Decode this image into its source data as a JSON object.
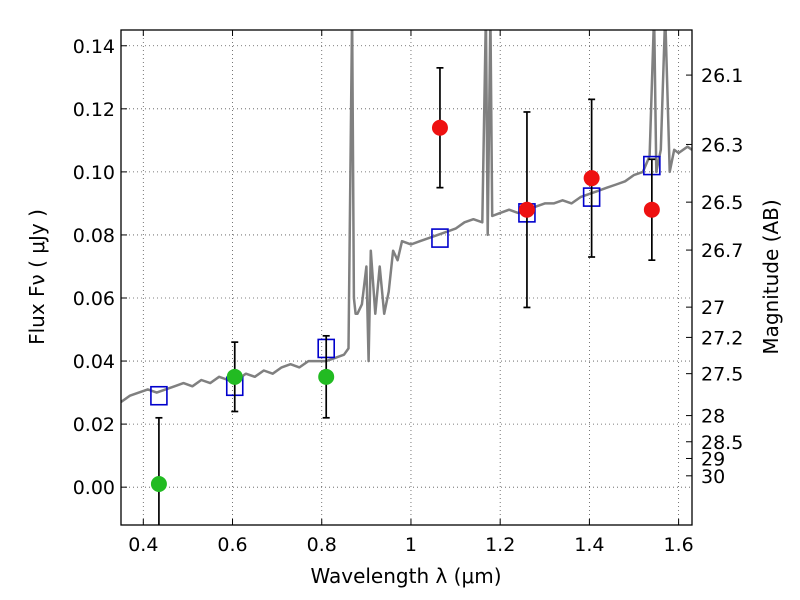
{
  "chart_data": {
    "type": "scatter",
    "title": "",
    "xlabel": "Wavelength  λ (μm)",
    "ylabel": "Flux  Fν  ( μJy )",
    "y2label": "Magnitude (AB)",
    "xlim": [
      0.35,
      1.63
    ],
    "ylim": [
      -0.012,
      0.145
    ],
    "grid": true,
    "x_ticks": [
      0.4,
      0.6,
      0.8,
      1.0,
      1.2,
      1.4,
      1.6
    ],
    "x_tick_labels": [
      "0.4",
      "0.6",
      "0.8",
      "1",
      "1.2",
      "1.4",
      "1.6"
    ],
    "y_ticks": [
      0.0,
      0.02,
      0.04,
      0.06,
      0.08,
      0.1,
      0.12,
      0.14
    ],
    "y_tick_labels": [
      "0.00",
      "0.02",
      "0.04",
      "0.06",
      "0.08",
      "0.10",
      "0.12",
      "0.14"
    ],
    "y2_ticks": [
      {
        "label": "26.1",
        "flux": 0.1307
      },
      {
        "label": "26.3",
        "flux": 0.1087
      },
      {
        "label": "26.5",
        "flux": 0.0904
      },
      {
        "label": "26.7",
        "flux": 0.0752
      },
      {
        "label": "27",
        "flux": 0.0571
      },
      {
        "label": "27.2",
        "flux": 0.0475
      },
      {
        "label": "27.5",
        "flux": 0.036
      },
      {
        "label": "28",
        "flux": 0.0227
      },
      {
        "label": "28.5",
        "flux": 0.0144
      },
      {
        "label": "29",
        "flux": 0.0091
      },
      {
        "label": "30",
        "flux": 0.0036
      }
    ],
    "series": [
      {
        "kind": "spectrum",
        "color": "#808080",
        "x": [
          0.35,
          0.37,
          0.39,
          0.41,
          0.43,
          0.45,
          0.47,
          0.49,
          0.51,
          0.53,
          0.55,
          0.57,
          0.59,
          0.61,
          0.63,
          0.65,
          0.67,
          0.69,
          0.71,
          0.73,
          0.75,
          0.77,
          0.79,
          0.81,
          0.83,
          0.85,
          0.86,
          0.868,
          0.872,
          0.876,
          0.88,
          0.89,
          0.9,
          0.905,
          0.91,
          0.92,
          0.93,
          0.94,
          0.95,
          0.96,
          0.97,
          0.98,
          1.0,
          1.02,
          1.04,
          1.06,
          1.08,
          1.1,
          1.12,
          1.14,
          1.16,
          1.168,
          1.172,
          1.178,
          1.182,
          1.2,
          1.22,
          1.24,
          1.26,
          1.28,
          1.3,
          1.32,
          1.34,
          1.36,
          1.38,
          1.4,
          1.42,
          1.44,
          1.46,
          1.48,
          1.5,
          1.52,
          1.535,
          1.545,
          1.55,
          1.56,
          1.57,
          1.58,
          1.59,
          1.6,
          1.62,
          1.63
        ],
        "y": [
          0.027,
          0.029,
          0.03,
          0.031,
          0.03,
          0.031,
          0.032,
          0.033,
          0.032,
          0.034,
          0.033,
          0.035,
          0.034,
          0.034,
          0.036,
          0.035,
          0.037,
          0.036,
          0.038,
          0.039,
          0.038,
          0.04,
          0.04,
          0.04,
          0.041,
          0.042,
          0.044,
          0.15,
          0.06,
          0.055,
          0.055,
          0.058,
          0.07,
          0.04,
          0.075,
          0.055,
          0.07,
          0.055,
          0.062,
          0.075,
          0.072,
          0.078,
          0.077,
          0.078,
          0.079,
          0.08,
          0.081,
          0.082,
          0.084,
          0.085,
          0.084,
          0.15,
          0.08,
          0.15,
          0.086,
          0.087,
          0.088,
          0.087,
          0.088,
          0.089,
          0.09,
          0.09,
          0.091,
          0.09,
          0.092,
          0.093,
          0.094,
          0.095,
          0.096,
          0.097,
          0.099,
          0.1,
          0.105,
          0.15,
          0.1,
          0.107,
          0.15,
          0.1,
          0.107,
          0.106,
          0.108,
          0.107
        ]
      },
      {
        "kind": "model_points",
        "marker": "open-square",
        "color": "#0000cc",
        "x": [
          0.435,
          0.605,
          0.81,
          1.065,
          1.26,
          1.405,
          1.54
        ],
        "y": [
          0.029,
          0.032,
          0.044,
          0.079,
          0.087,
          0.092,
          0.102
        ]
      },
      {
        "kind": "observed_points",
        "marker": "filled-circle",
        "points": [
          {
            "x": 0.435,
            "y": 0.001,
            "err": 0.021,
            "color": "#22bb22"
          },
          {
            "x": 0.605,
            "y": 0.035,
            "err": 0.011,
            "color": "#22bb22"
          },
          {
            "x": 0.81,
            "y": 0.035,
            "err": 0.013,
            "color": "#22bb22"
          },
          {
            "x": 1.065,
            "y": 0.114,
            "err": 0.019,
            "color": "#ee1111"
          },
          {
            "x": 1.26,
            "y": 0.088,
            "err": 0.031,
            "color": "#ee1111"
          },
          {
            "x": 1.405,
            "y": 0.098,
            "err": 0.025,
            "color": "#ee1111"
          },
          {
            "x": 1.54,
            "y": 0.088,
            "err": 0.016,
            "color": "#ee1111"
          }
        ]
      }
    ]
  }
}
